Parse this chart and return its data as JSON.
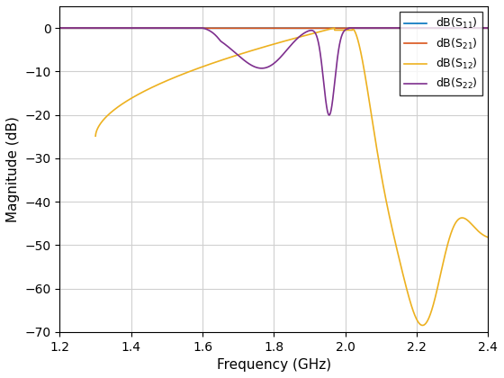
{
  "title": "",
  "xlabel": "Frequency (GHz)",
  "ylabel": "Magnitude (dB)",
  "xlim": [
    1.2,
    2.4
  ],
  "ylim": [
    -70,
    5
  ],
  "yticks": [
    0,
    -10,
    -20,
    -30,
    -40,
    -50,
    -60,
    -70
  ],
  "xticks": [
    1.2,
    1.4,
    1.6,
    1.8,
    2.0,
    2.2,
    2.4
  ],
  "colors": {
    "S11": "#0072bd",
    "S21": "#d95319",
    "S12": "#edb120",
    "S22": "#7e2f8e"
  },
  "background_color": "#ffffff",
  "grid_color": "#d0d0d0"
}
